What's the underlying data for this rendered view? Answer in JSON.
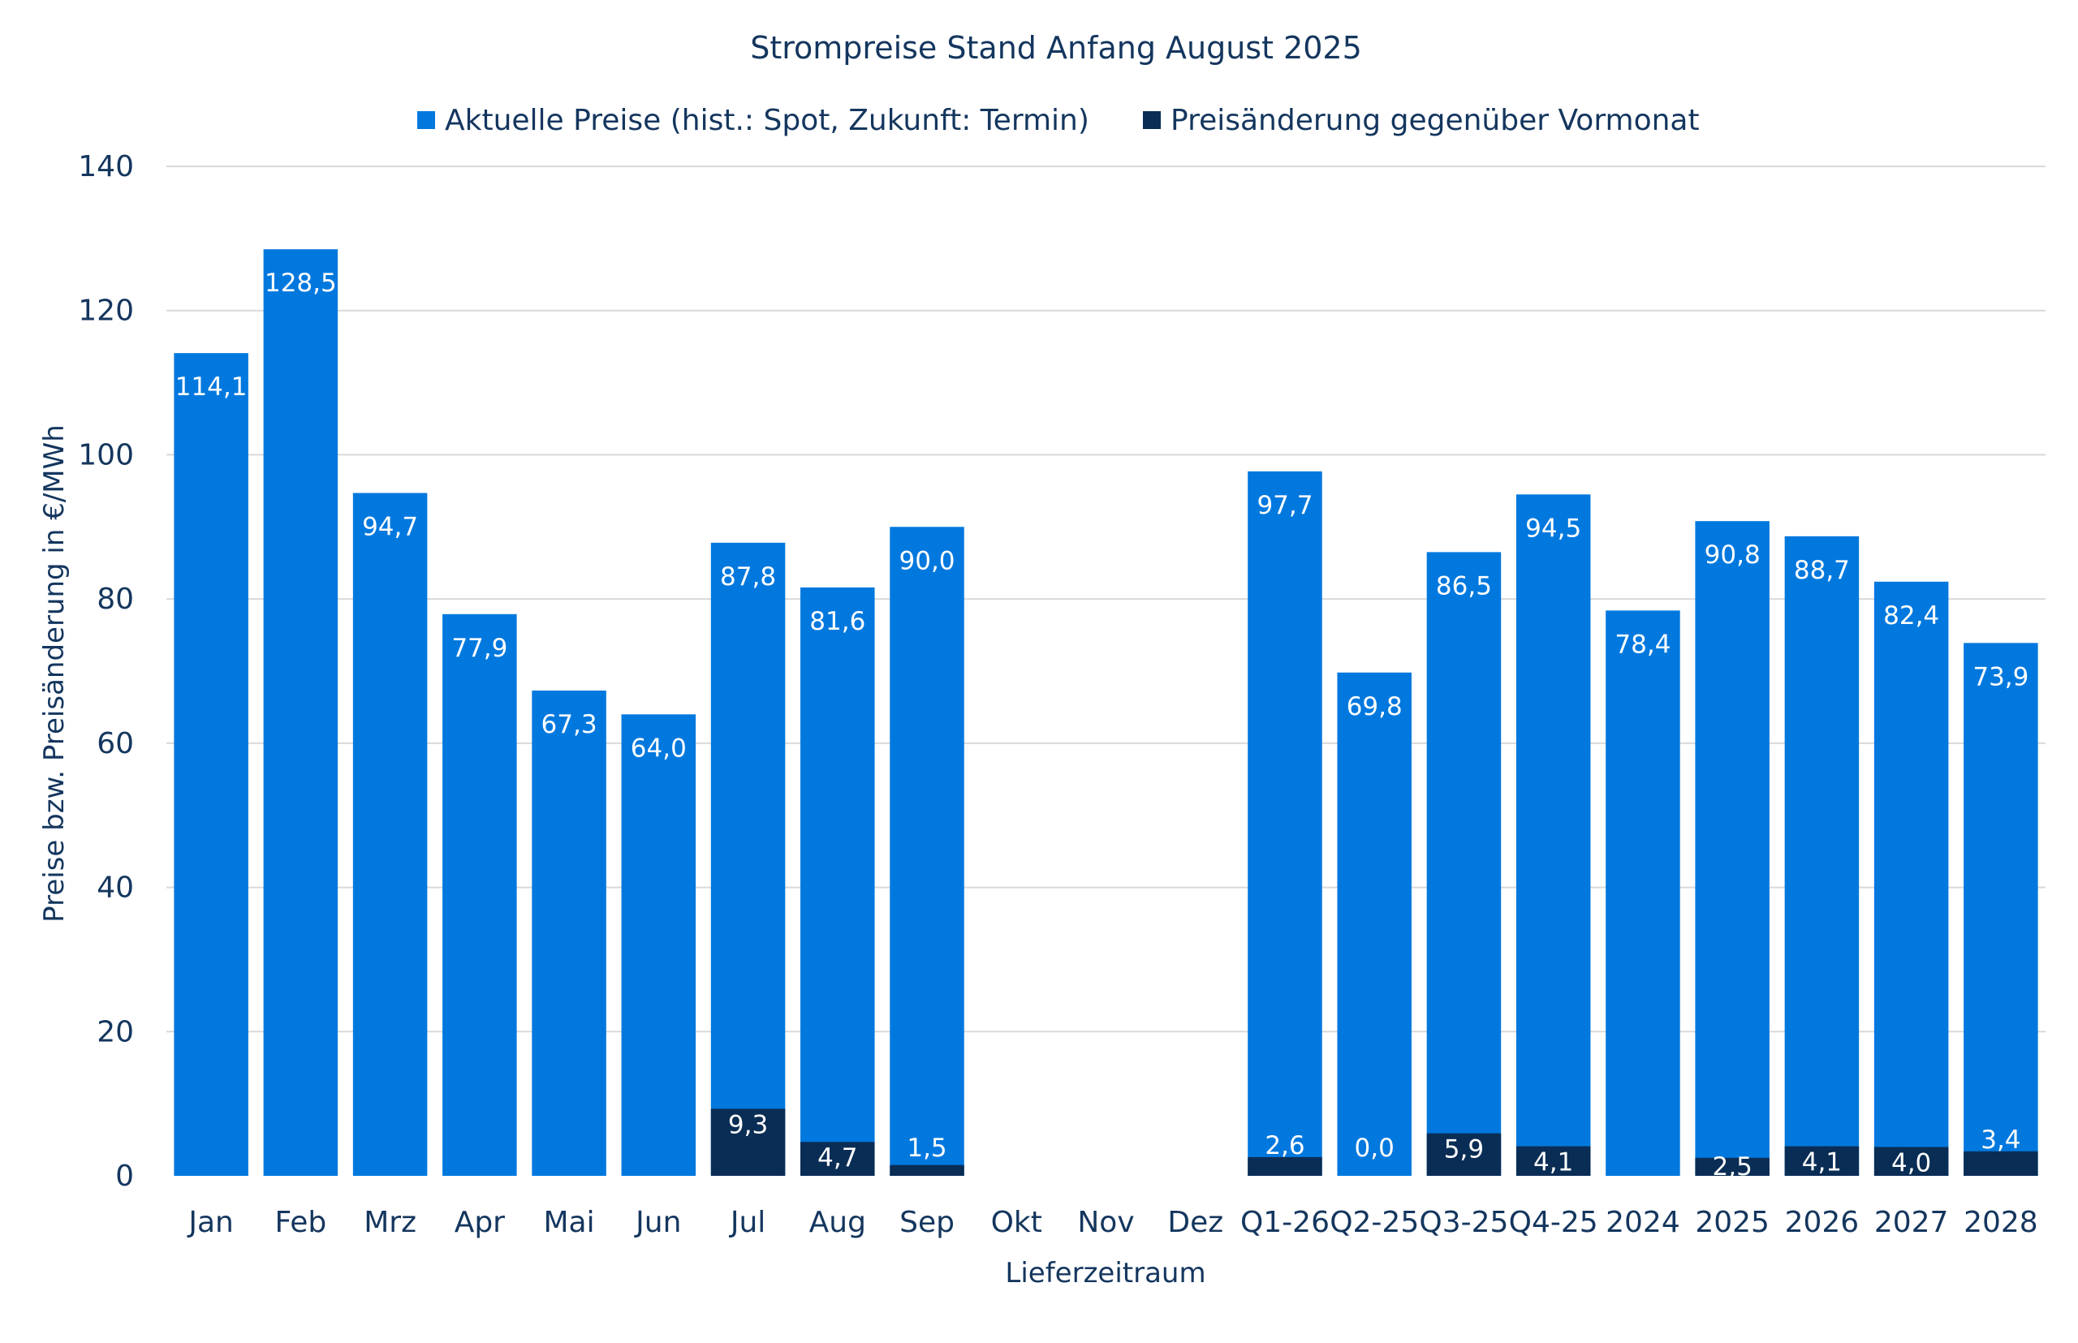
{
  "chart_data": {
    "type": "bar",
    "stacking": "overlay",
    "title": "Strompreise Stand Anfang August 2025",
    "xlabel": "Lieferzeitraum",
    "ylabel": "Preise bzw. Preisänderung in €/MWh",
    "ylim": [
      0,
      140
    ],
    "yticks": [
      0,
      20,
      40,
      60,
      80,
      100,
      120,
      140
    ],
    "grid": true,
    "legend_position": "top",
    "categories": [
      "Jan",
      "Feb",
      "Mrz",
      "Apr",
      "Mai",
      "Jun",
      "Jul",
      "Aug",
      "Sep",
      "Okt",
      "Nov",
      "Dez",
      "Q1-26",
      "Q2-25",
      "Q3-25",
      "Q4-25",
      "2024",
      "2025",
      "2026",
      "2027",
      "2028"
    ],
    "series": [
      {
        "name": "Aktuelle Preise (hist.: Spot, Zukunft: Termin)",
        "color": "#0078de",
        "values": [
          114.1,
          128.5,
          94.7,
          77.9,
          67.3,
          64.0,
          87.8,
          81.6,
          90.0,
          null,
          null,
          null,
          97.7,
          69.8,
          86.5,
          94.5,
          78.4,
          90.8,
          88.7,
          82.4,
          73.9
        ],
        "labels": [
          "114,1",
          "128,5",
          "94,7",
          "77,9",
          "67,3",
          "64,0",
          "87,8",
          "81,6",
          "90,0",
          "",
          "",
          "",
          "97,7",
          "69,8",
          "86,5",
          "94,5",
          "78,4",
          "90,8",
          "88,7",
          "82,4",
          "73,9"
        ]
      },
      {
        "name": "Preisänderung gegenüber Vormonat",
        "color": "#0a2d55",
        "values": [
          null,
          null,
          null,
          null,
          null,
          null,
          9.3,
          4.7,
          1.5,
          null,
          null,
          null,
          2.6,
          0.0,
          5.9,
          4.1,
          null,
          2.5,
          4.1,
          4.0,
          3.4
        ],
        "labels": [
          "",
          "",
          "",
          "",
          "",
          "",
          "9,3",
          "4,7",
          "1,5",
          "",
          "",
          "",
          "2,6",
          "0,0",
          "5,9",
          "4,1",
          "",
          "2,5",
          "4,1",
          "4,0",
          "3,4"
        ]
      }
    ]
  }
}
